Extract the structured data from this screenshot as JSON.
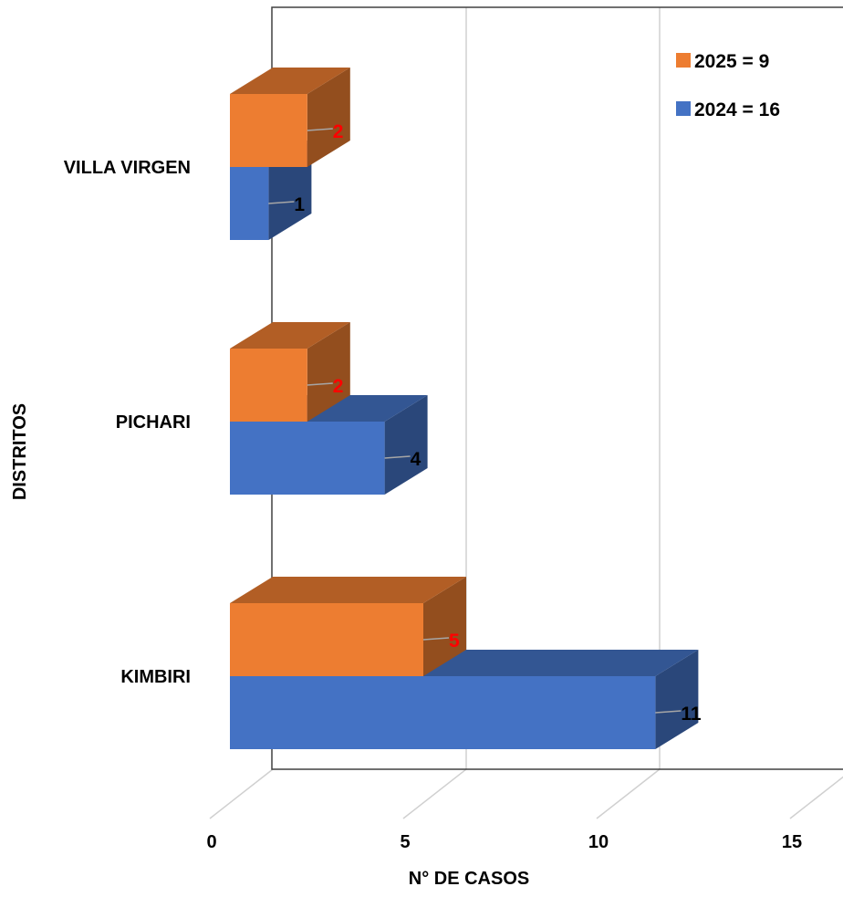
{
  "chart_data": {
    "type": "bar",
    "orientation": "horizontal",
    "style": "3d",
    "categories": [
      "KIMBIRI",
      "PICHARI",
      "VILLA VIRGEN"
    ],
    "series": [
      {
        "name": "2024 = 16",
        "values": [
          11,
          4,
          1
        ],
        "color": "#4472C4",
        "label_color": "#000000"
      },
      {
        "name": "2025 = 9",
        "values": [
          5,
          2,
          2
        ],
        "color": "#ED7D31",
        "label_color": "#FF0000"
      }
    ],
    "title": "",
    "xlabel": "N° DE CASOS",
    "ylabel": "DISTRITOS",
    "xlim": [
      0,
      15
    ],
    "x_ticks": [
      "0",
      "5",
      "10",
      "15"
    ],
    "grid": true,
    "legend_position": "top-right"
  }
}
